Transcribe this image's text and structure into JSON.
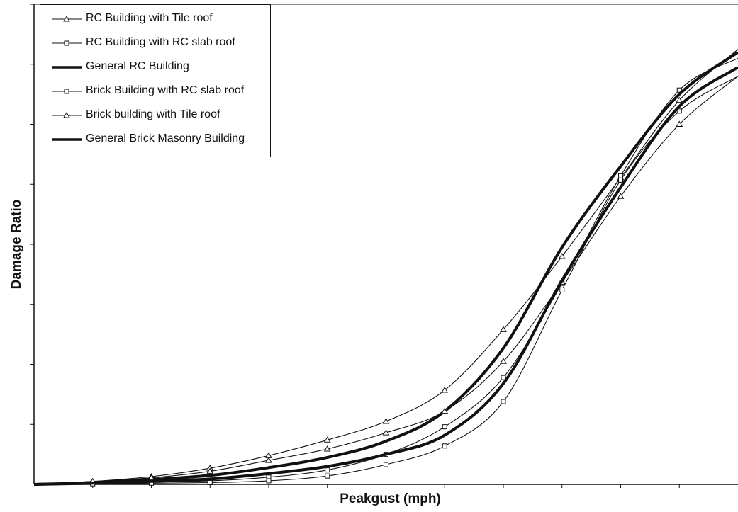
{
  "chart_data": {
    "type": "line",
    "title": "",
    "xlabel": "Peakgust (mph)",
    "ylabel": "Damage Ratio",
    "x": [
      1,
      2,
      3,
      4,
      5,
      6,
      7,
      8,
      9,
      10,
      11,
      12,
      13
    ],
    "xlim": [
      1,
      13
    ],
    "ylim": [
      0,
      8
    ],
    "grid": false,
    "legend_position": "top-left",
    "series": [
      {
        "name": "RC Building with Tile roof",
        "marker": "triangle",
        "weight": "thin",
        "values": [
          0,
          0.05,
          0.13,
          0.27,
          0.48,
          0.74,
          1.05,
          1.57,
          2.58,
          3.8,
          5.11,
          6.4,
          7.25
        ]
      },
      {
        "name": "RC Building with RC slab roof",
        "marker": "square",
        "weight": "thin",
        "values": [
          0,
          0.02,
          0.04,
          0.06,
          0.12,
          0.24,
          0.5,
          0.96,
          1.78,
          3.35,
          5.14,
          6.57,
          7.1
        ]
      },
      {
        "name": "General RC Building",
        "marker": "none",
        "weight": "thick",
        "values": [
          0,
          0.03,
          0.08,
          0.15,
          0.28,
          0.45,
          0.72,
          1.22,
          2.27,
          3.95,
          5.3,
          6.5,
          7.2
        ]
      },
      {
        "name": "Brick Building with RC slab roof",
        "marker": "square",
        "weight": "thin",
        "values": [
          0,
          0.01,
          0.02,
          0.03,
          0.06,
          0.14,
          0.33,
          0.64,
          1.38,
          3.24,
          5.07,
          6.22,
          6.8
        ]
      },
      {
        "name": "Brick building with Tile roof",
        "marker": "triangle",
        "weight": "thin",
        "values": [
          0,
          0.05,
          0.11,
          0.22,
          0.4,
          0.59,
          0.86,
          1.22,
          2.05,
          3.37,
          4.8,
          6.0,
          6.8
        ]
      },
      {
        "name": "General Brick Masonry Building",
        "marker": "none",
        "weight": "thick",
        "values": [
          0,
          0.02,
          0.05,
          0.09,
          0.18,
          0.3,
          0.5,
          0.82,
          1.68,
          3.4,
          4.95,
          6.3,
          6.95
        ]
      }
    ]
  }
}
